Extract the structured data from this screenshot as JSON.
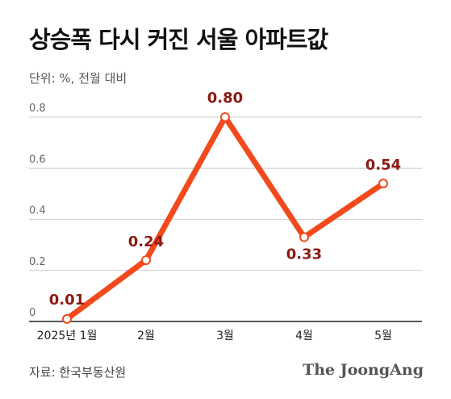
{
  "header": {
    "title": "상승폭 다시 커진 서울 아파트값",
    "unit": "단위: %, 전월 대비"
  },
  "footer": {
    "source": "자료: 한국부동산원",
    "logo": "The JoongAng"
  },
  "colors": {
    "line": "#f24a1d",
    "label": "#8b1a12",
    "grid": "#cccccc",
    "axis": "#222222"
  },
  "chart_data": {
    "type": "line",
    "categories": [
      "2025년 1월",
      "2월",
      "3월",
      "4월",
      "5월"
    ],
    "series": [
      {
        "values": [
          0.01,
          0.24,
          0.8,
          0.33,
          0.54
        ]
      }
    ],
    "data_labels": [
      "0.01",
      "0.24",
      "0.80",
      "0.33",
      "0.54"
    ],
    "yticks": [
      "0",
      "0.2",
      "0.4",
      "0.6",
      "0.8"
    ],
    "ylim": [
      0,
      0.8
    ],
    "grid": true,
    "title": "상승폭 다시 커진 서울 아파트값",
    "ylabel": "단위: %, 전월 대비",
    "xlabel": ""
  }
}
